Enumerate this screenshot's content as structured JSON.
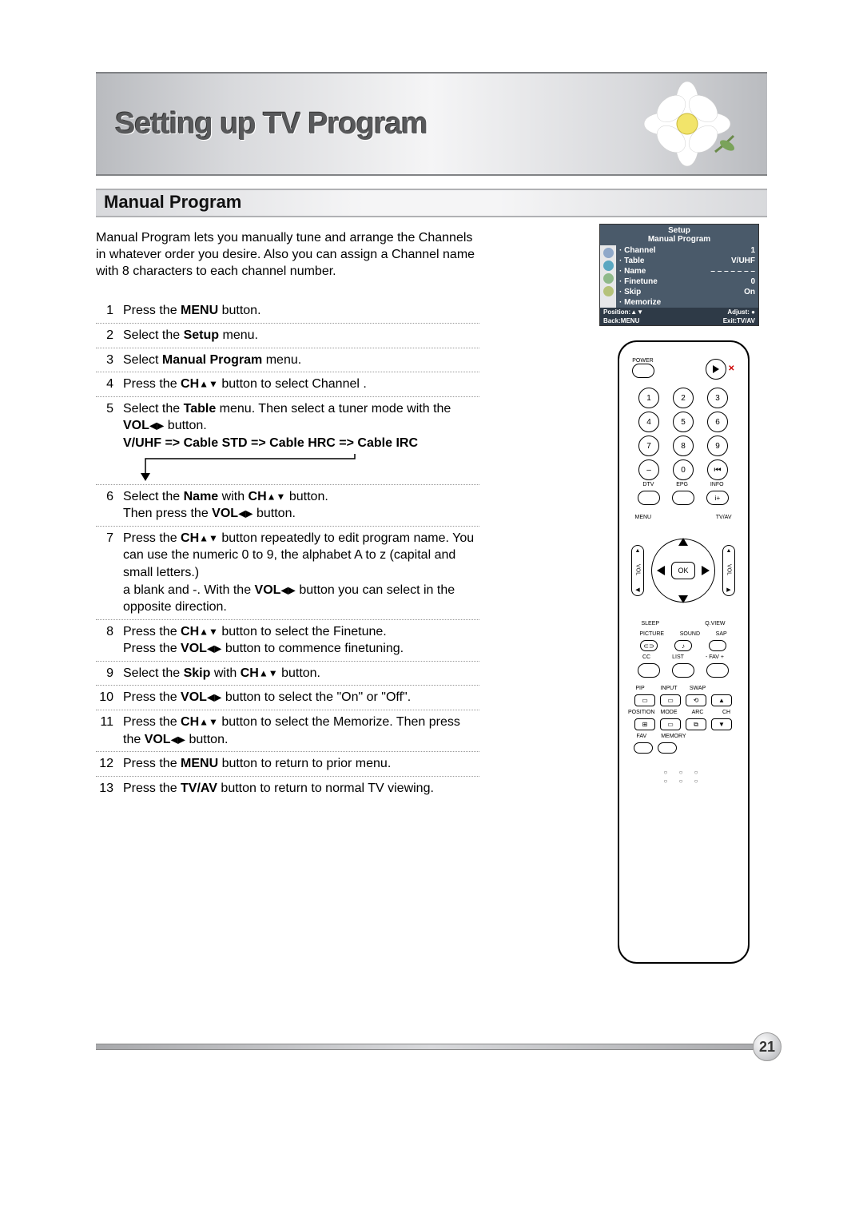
{
  "page": {
    "title": "Setting up TV Program",
    "section": "Manual Program",
    "intro": "Manual Program lets you manually tune and arrange the Channels in whatever order you desire. Also you can assign a Channel name with 8 characters to each channel number.",
    "page_number": "21"
  },
  "steps": [
    {
      "n": "1",
      "html": "Press the <b>MENU</b> button."
    },
    {
      "n": "2",
      "html": "Select the <b>Setup</b> menu."
    },
    {
      "n": "3",
      "html": "Select <b>Manual Program</b> menu."
    },
    {
      "n": "4",
      "html": "Press the <b>CH</b><span class='arrows'>▲▼</span> button to select Channel ."
    },
    {
      "n": "5",
      "html": "Select the <b>Table</b> menu. Then select a tuner mode with the <b>VOL</b><span class='arrows'>◀▶</span> button.<br><b>V/UHF =&gt; Cable STD =&gt; Cable HRC =&gt; Cable IRC</b><svg class='loop-svg' width='300' height='34'><path d='M 28 30 L 28 6 L 290 6 L 290 0' fill='none' stroke='#000' stroke-width='1.5'/><polygon points='22,24 34,24 28,34' fill='#000'/></svg>"
    },
    {
      "n": "6",
      "html": "Select the <b>Name</b> with <b>CH</b><span class='arrows'>▲▼</span> button.<br>Then press the <b>VOL</b><span class='arrows'>◀▶</span> button."
    },
    {
      "n": "7",
      "html": "Press the <b>CH</b><span class='arrows'>▲▼</span> button repeatedly to edit program name. You can use the numeric 0 to 9, the alphabet A to z (capital and small letters.)<br>a blank and -. With the <b>VOL</b><span class='arrows'>◀▶</span> button you can select in the opposite direction."
    },
    {
      "n": "8",
      "html": "Press the <b>CH</b><span class='arrows'>▲▼</span> button to select the Finetune.<br>Press the <b>VOL</b><span class='arrows'>◀▶</span> button to commence finetuning."
    },
    {
      "n": "9",
      "html": "Select the <b>Skip</b> with <b>CH</b><span class='arrows'>▲▼</span> button."
    },
    {
      "n": "10",
      "html": "Press the <b>VOL</b><span class='arrows'>◀▶</span> button to select the \"On\" or \"Off\"."
    },
    {
      "n": "11",
      "html": "Press the <b>CH</b><span class='arrows'>▲▼</span> button to select the Memorize. Then press the <b>VOL</b><span class='arrows'>◀▶</span> button."
    },
    {
      "n": "12",
      "html": "Press the <b>MENU</b> button to return to prior menu."
    },
    {
      "n": "13",
      "html": "Press the <b>TV/AV</b> button to return to normal TV viewing.",
      "nobord": true
    }
  ],
  "osd": {
    "title1": "Setup",
    "title2": "Manual Program",
    "icon_colors": [
      "#8fa8c9",
      "#5aa7c1",
      "#8fb98a",
      "#b5c27a"
    ],
    "rows": [
      {
        "label": "· Channel",
        "value": "1"
      },
      {
        "label": "· Table",
        "value": "V/UHF"
      },
      {
        "label": "· Name",
        "value": "– – – – – – –"
      },
      {
        "label": "· Finetune",
        "value": "0"
      },
      {
        "label": "· Skip",
        "value": "On"
      },
      {
        "label": "· Memorize",
        "value": ""
      }
    ],
    "foot_l1": "Position:▲▼",
    "foot_r1": "Adjust: ●",
    "foot_l2": "Back:MENU",
    "foot_r2": "Exit:TV/AV"
  },
  "remote": {
    "power": "POWER",
    "numbers": [
      [
        "1",
        "2",
        "3"
      ],
      [
        "4",
        "5",
        "6"
      ],
      [
        "7",
        "8",
        "9"
      ],
      [
        "–",
        "0",
        "⏮"
      ]
    ],
    "numrow_labels": [
      "DTV",
      "EPG",
      "INFO"
    ],
    "info_badge": "i+",
    "menu": "MENU",
    "tvav": "TV/AV",
    "ok": "OK",
    "vol": "VOL",
    "below_nav": [
      "SLEEP",
      "Q.VIEW"
    ],
    "mid_labels": [
      "PICTURE",
      "SOUND",
      "SAP"
    ],
    "mid2_labels": [
      "CC",
      "LIST",
      "- FAV +"
    ],
    "grid_labels_top": [
      "PIP",
      "INPUT",
      "SWAP",
      ""
    ],
    "grid_labels_bot": [
      "POSITION",
      "MODE",
      "ARC",
      "CH"
    ],
    "grid_bottom_small": [
      "FAV",
      "MEMORY"
    ]
  },
  "colors": {
    "band_border": "#808285",
    "osd_bg": "#4a5a6a"
  }
}
